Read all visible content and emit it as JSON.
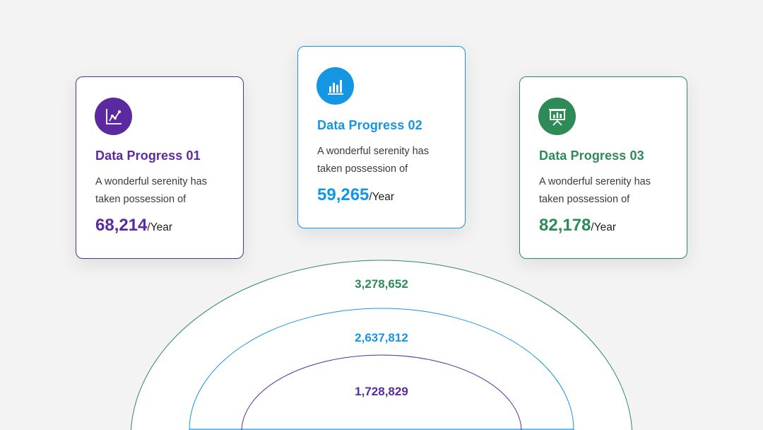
{
  "colors": {
    "purple": "#5b2a9e",
    "blue": "#1596e3",
    "green": "#2e8b57"
  },
  "cards": [
    {
      "title": "Data Progress 01",
      "description": "A wonderful serenity has taken possession of",
      "value": "68,214",
      "unit": "/Year",
      "icon": "line-chart-icon"
    },
    {
      "title": "Data Progress 02",
      "description": "A wonderful serenity has taken possession of",
      "value": "59,265",
      "unit": "/Year",
      "icon": "bar-chart-icon"
    },
    {
      "title": "Data Progress 03",
      "description": "A wonderful serenity has taken possession of",
      "value": "82,178",
      "unit": "/Year",
      "icon": "presentation-board-icon"
    }
  ],
  "arcs": [
    {
      "label": "3,278,652"
    },
    {
      "label": "2,637,812"
    },
    {
      "label": "1,728,829"
    }
  ]
}
